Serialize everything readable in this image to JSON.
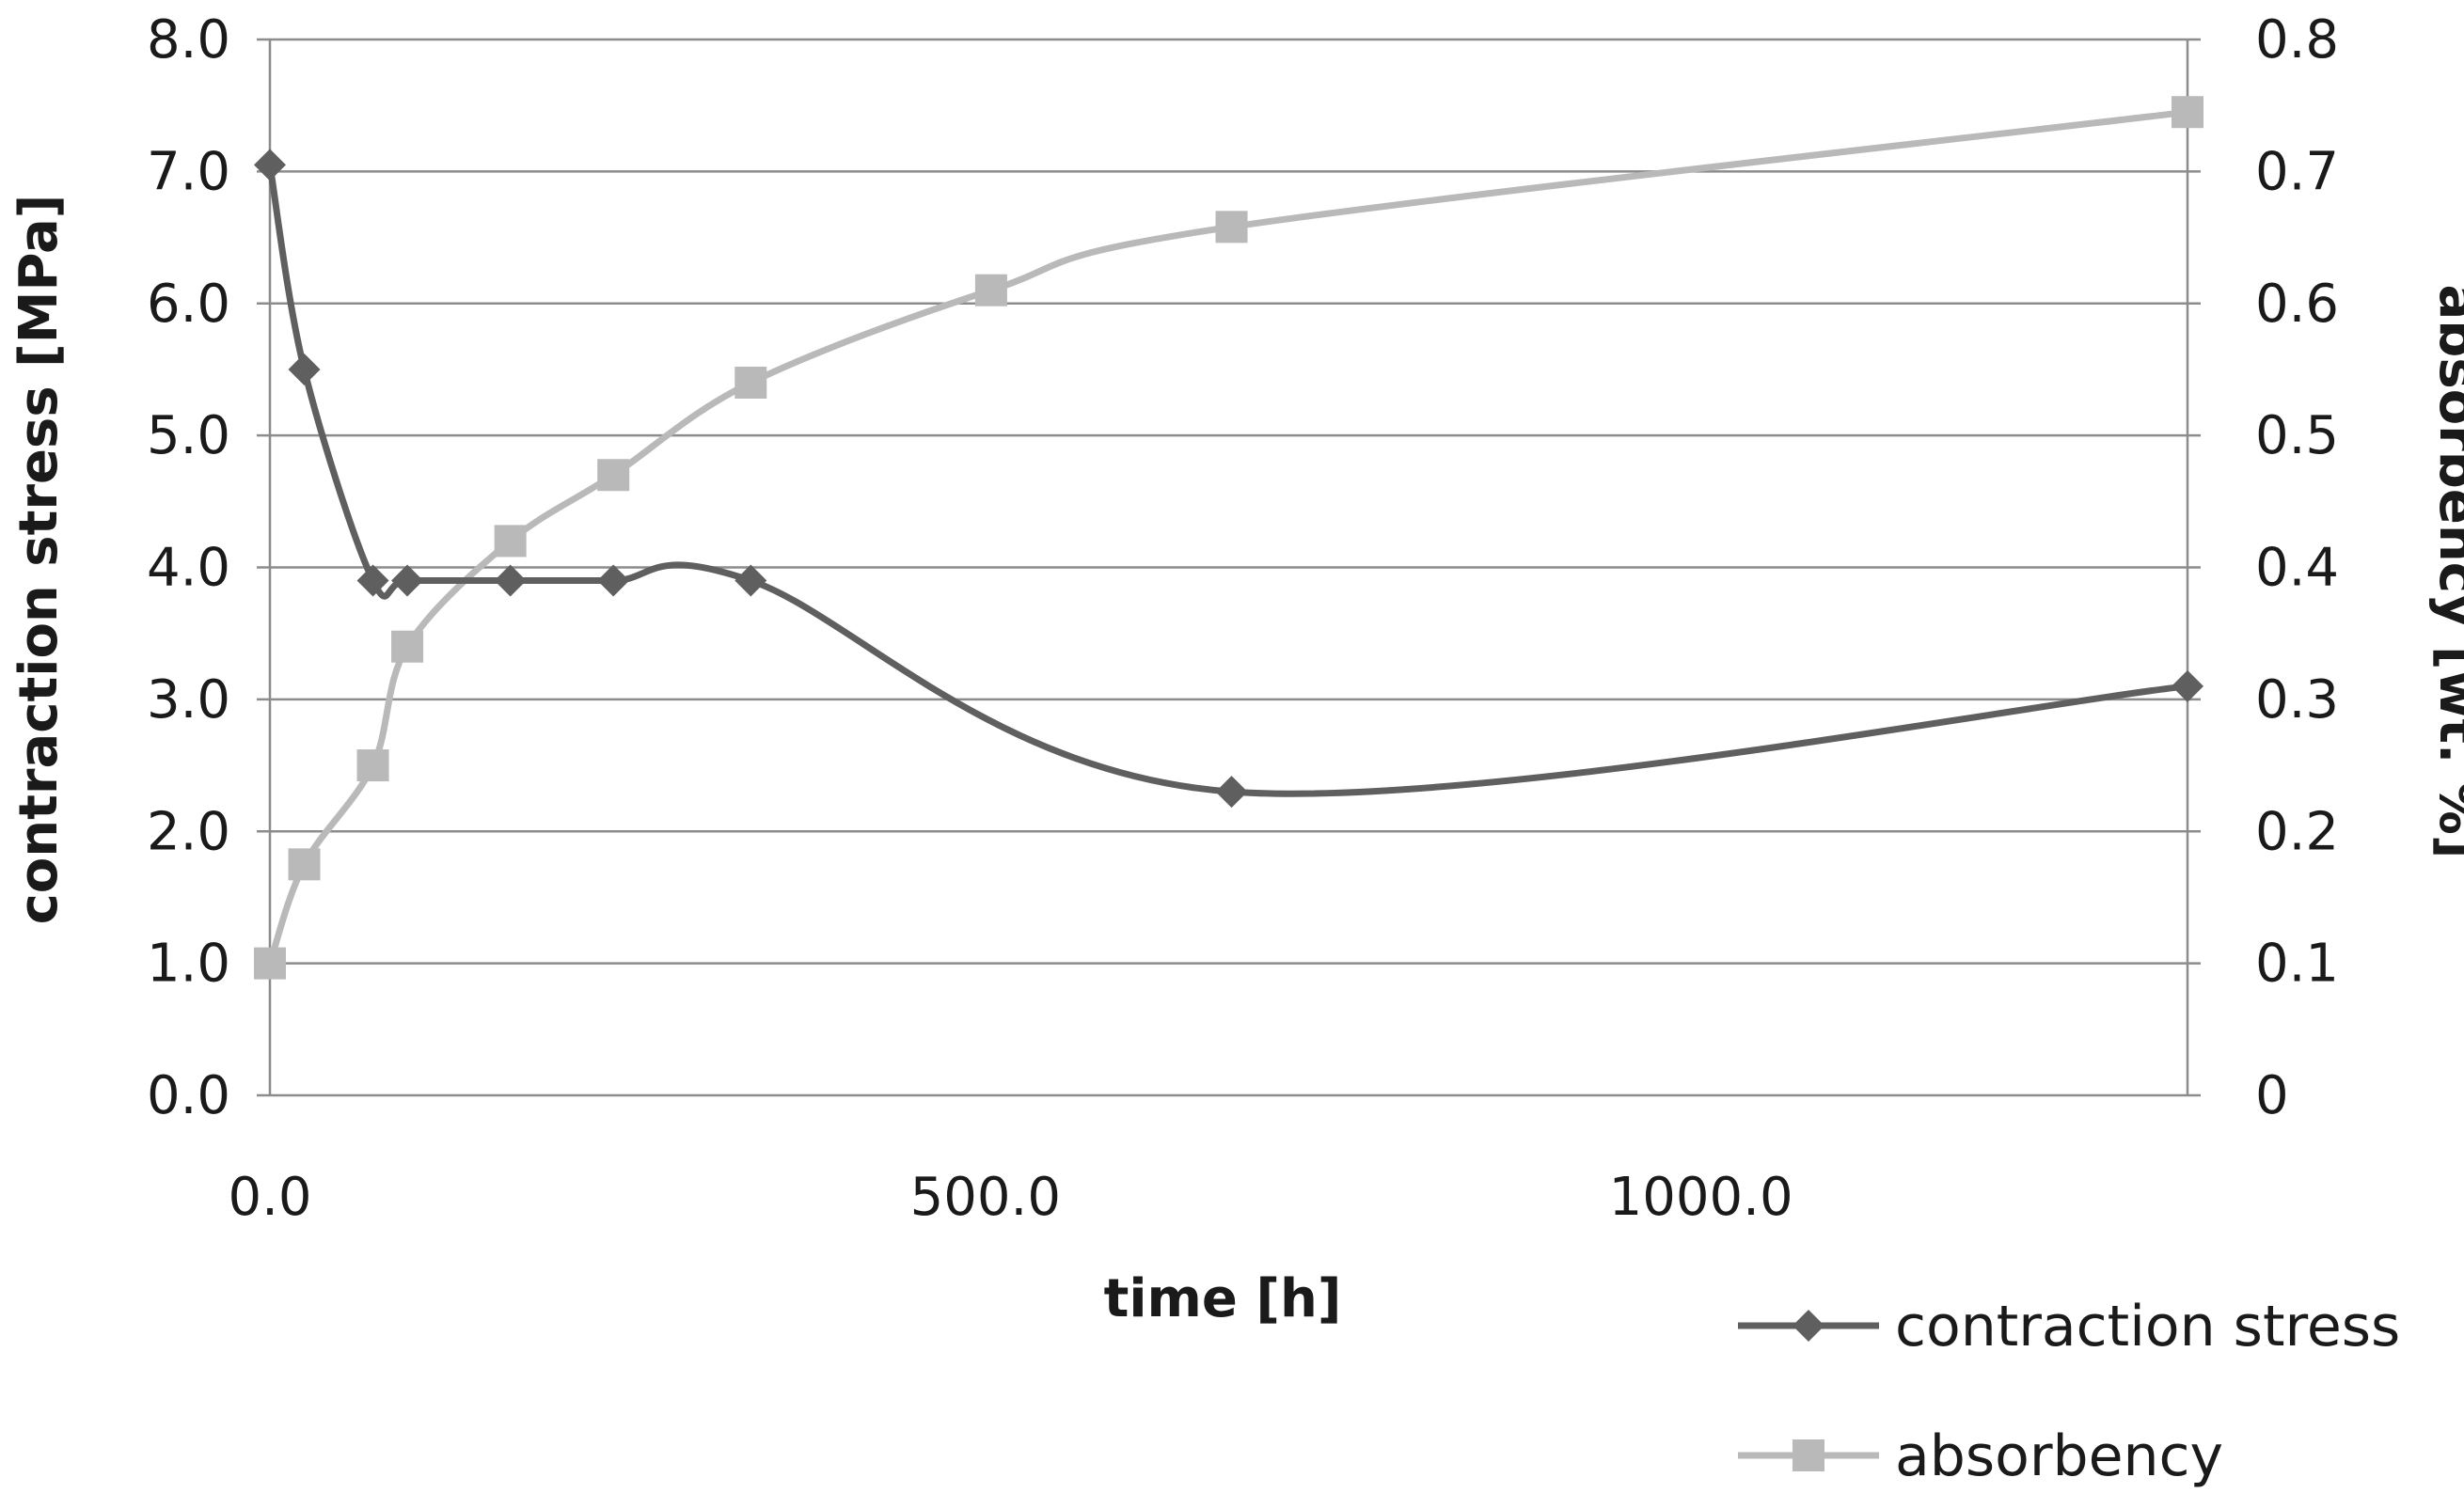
{
  "chart_data": {
    "type": "line",
    "xlabel": "time [h]",
    "ylabel_left": "contraction stress [MPa]",
    "ylabel_right": "absorbency [wt. %]",
    "x_range": [
      0,
      1340
    ],
    "y_left_range": [
      0,
      8
    ],
    "y_right_range": [
      0,
      0.8
    ],
    "x_ticks": [
      "0.0",
      "500.0",
      "1000.0"
    ],
    "x_tick_values": [
      0,
      500,
      1000
    ],
    "y_left_ticks": [
      "0.0",
      "1.0",
      "2.0",
      "3.0",
      "4.0",
      "5.0",
      "6.0",
      "7.0",
      "8.0"
    ],
    "y_right_ticks": [
      "0",
      "0.1",
      "0.2",
      "0.3",
      "0.4",
      "0.5",
      "0.6",
      "0.7",
      "0.8"
    ],
    "grid": true,
    "legend_position": "bottom-right",
    "series": [
      {
        "name": "contraction stress",
        "axis": "left",
        "marker": "diamond",
        "color": "#5f5f5f",
        "x": [
          0,
          24,
          72,
          96,
          168,
          240,
          336,
          672,
          1340
        ],
        "y": [
          7.05,
          5.5,
          3.9,
          3.9,
          3.9,
          3.9,
          3.9,
          2.3,
          3.1
        ]
      },
      {
        "name": "absorbency",
        "axis": "right",
        "marker": "square",
        "color": "#b9b9b9",
        "x": [
          0,
          24,
          72,
          96,
          168,
          240,
          336,
          504,
          672,
          1340
        ],
        "y": [
          0.1,
          0.175,
          0.25,
          0.34,
          0.42,
          0.47,
          0.54,
          0.61,
          0.658,
          0.745
        ]
      }
    ]
  }
}
